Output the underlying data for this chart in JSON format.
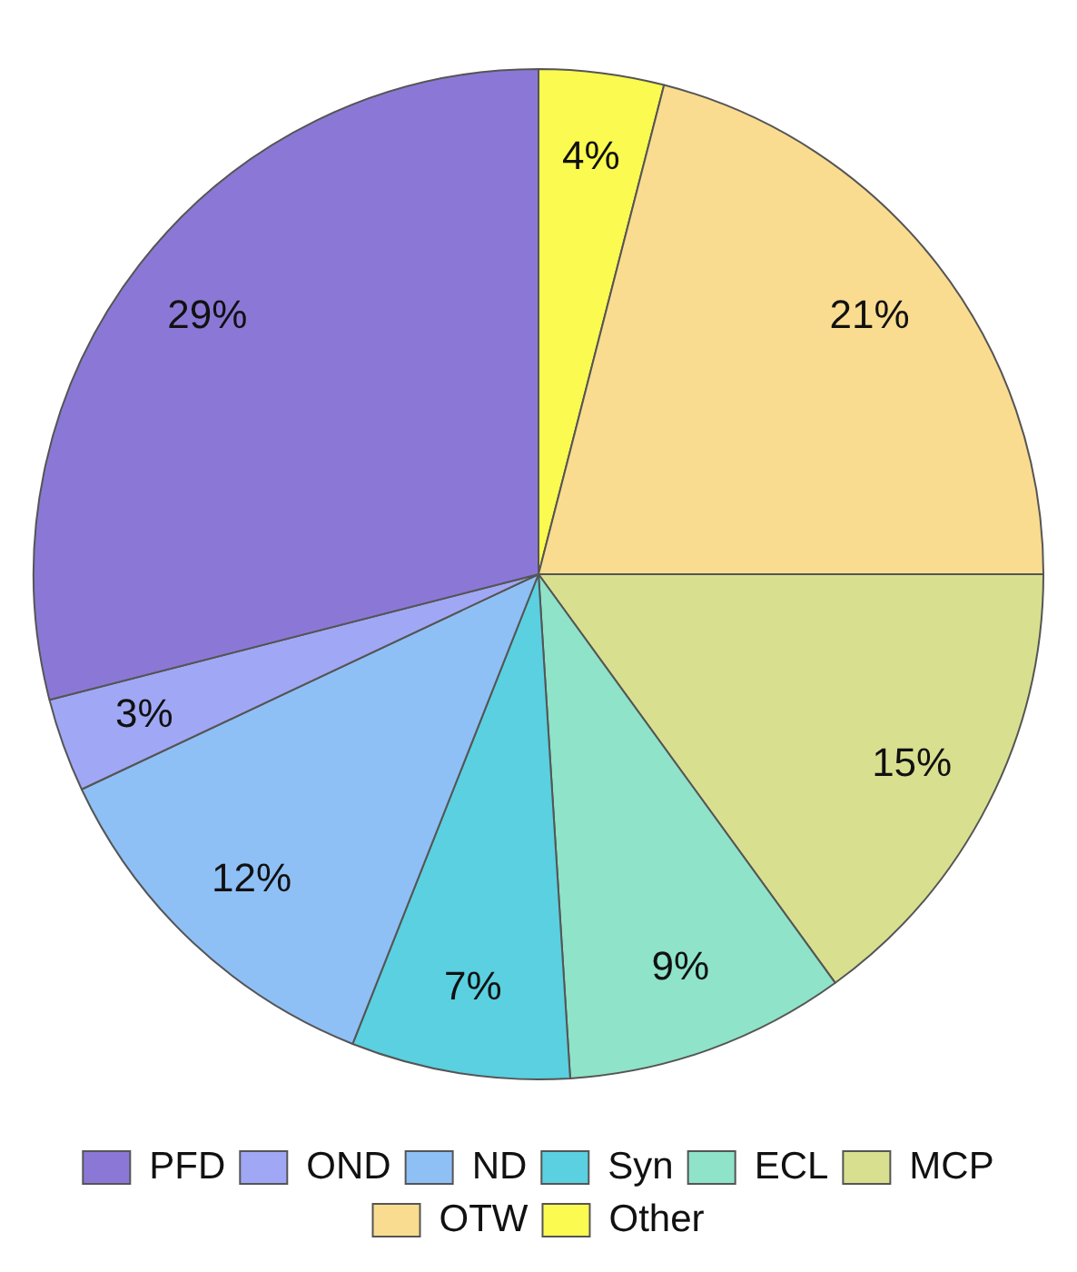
{
  "chart_data": {
    "type": "pie",
    "categories": [
      "PFD",
      "OND",
      "ND",
      "Syn",
      "ECL",
      "MCP",
      "OTW",
      "Other"
    ],
    "values": [
      29,
      3,
      12,
      7,
      9,
      15,
      21,
      4
    ],
    "value_labels": [
      "29%",
      "3%",
      "12%",
      "7%",
      "9%",
      "15%",
      "21%",
      "4%"
    ],
    "colors": [
      "#8b78d6",
      "#a0a8f5",
      "#8ec0f5",
      "#5ad0e0",
      "#8fe3c8",
      "#d8e090",
      "#fadc90",
      "#fafa50"
    ],
    "legend": "bottom"
  }
}
